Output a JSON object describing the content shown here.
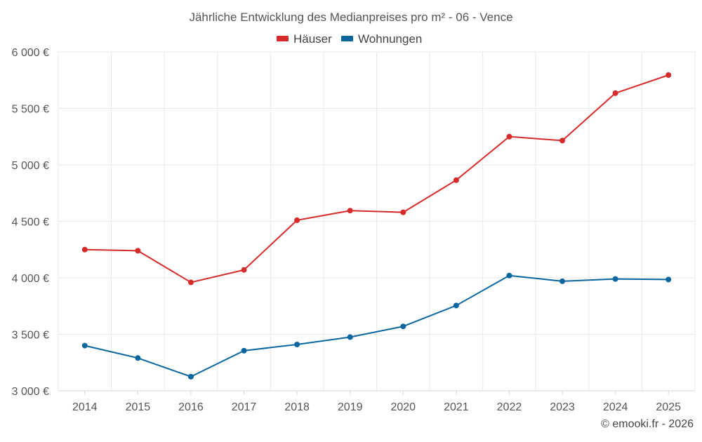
{
  "chart_data": {
    "type": "line",
    "title": "Jährliche Entwicklung des Medianpreises pro m² - 06 - Vence",
    "xlabel": "",
    "ylabel": "",
    "categories": [
      "2014",
      "2015",
      "2016",
      "2017",
      "2018",
      "2019",
      "2020",
      "2021",
      "2022",
      "2023",
      "2024",
      "2025"
    ],
    "ylim": [
      3000,
      6000
    ],
    "yticks": [
      3000,
      3500,
      4000,
      4500,
      5000,
      5500,
      6000
    ],
    "ytick_labels": [
      "3 000 €",
      "3 500 €",
      "4 000 €",
      "4 500 €",
      "5 000 €",
      "5 500 €",
      "6 000 €"
    ],
    "grid": true,
    "legend_position": "top-center",
    "series": [
      {
        "name": "Häuser",
        "color": "#d62b2b",
        "values": [
          4250,
          4240,
          3960,
          4070,
          4510,
          4595,
          4580,
          4865,
          5250,
          5215,
          5635,
          5795
        ]
      },
      {
        "name": "Wohnungen",
        "color": "#0b66a0",
        "values": [
          3400,
          3290,
          3125,
          3355,
          3410,
          3475,
          3570,
          3755,
          4020,
          3970,
          3990,
          3985
        ]
      }
    ]
  },
  "credit": "© emooki.fr - 2026"
}
